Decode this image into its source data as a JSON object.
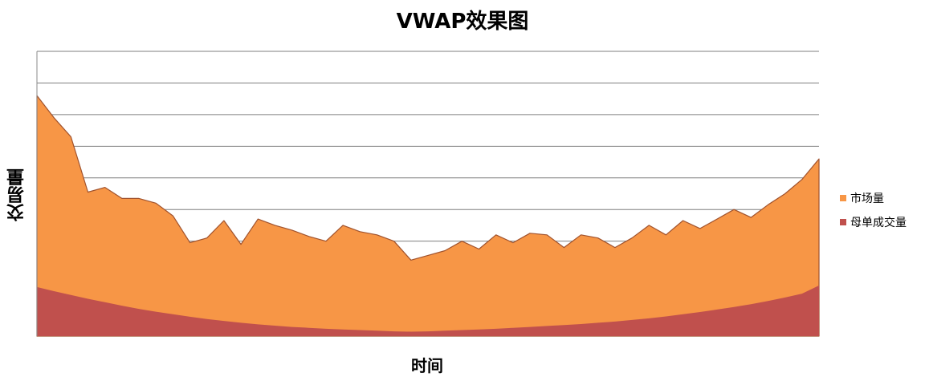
{
  "chart_data": {
    "type": "area",
    "title": "VWAP效果图",
    "xlabel": "时间",
    "ylabel": "交易量",
    "ylim": [
      0,
      9
    ],
    "grid": true,
    "legend_position": "right",
    "x": [
      0,
      1,
      2,
      3,
      4,
      5,
      6,
      7,
      8,
      9,
      10,
      11,
      12,
      13,
      14,
      15,
      16,
      17,
      18,
      19,
      20,
      21,
      22,
      23,
      24,
      25,
      26,
      27,
      28,
      29,
      30,
      31,
      32,
      33,
      34,
      35,
      36,
      37,
      38,
      39,
      40,
      41,
      42,
      43,
      44,
      45,
      46
    ],
    "series": [
      {
        "name": "市场量",
        "color": "#F79646",
        "values": [
          7.6,
          6.9,
          6.3,
          4.55,
          4.7,
          4.35,
          4.35,
          4.2,
          3.8,
          2.95,
          3.1,
          3.65,
          2.9,
          3.7,
          3.5,
          3.35,
          3.15,
          3.0,
          3.5,
          3.3,
          3.2,
          3.0,
          2.4,
          2.55,
          2.7,
          3.0,
          2.75,
          3.2,
          2.95,
          3.25,
          3.2,
          2.8,
          3.2,
          3.1,
          2.8,
          3.1,
          3.5,
          3.2,
          3.65,
          3.4,
          3.7,
          4.0,
          3.75,
          4.15,
          4.5,
          4.95,
          5.6
        ]
      },
      {
        "name": "母单成交量",
        "color": "#C0504D",
        "values": [
          1.55,
          1.42,
          1.3,
          1.18,
          1.07,
          0.96,
          0.86,
          0.77,
          0.69,
          0.61,
          0.54,
          0.48,
          0.42,
          0.37,
          0.33,
          0.29,
          0.26,
          0.23,
          0.21,
          0.19,
          0.17,
          0.15,
          0.14,
          0.15,
          0.17,
          0.19,
          0.21,
          0.23,
          0.26,
          0.29,
          0.32,
          0.35,
          0.38,
          0.42,
          0.46,
          0.51,
          0.56,
          0.62,
          0.69,
          0.76,
          0.84,
          0.92,
          1.01,
          1.11,
          1.22,
          1.34,
          1.6
        ]
      }
    ]
  }
}
